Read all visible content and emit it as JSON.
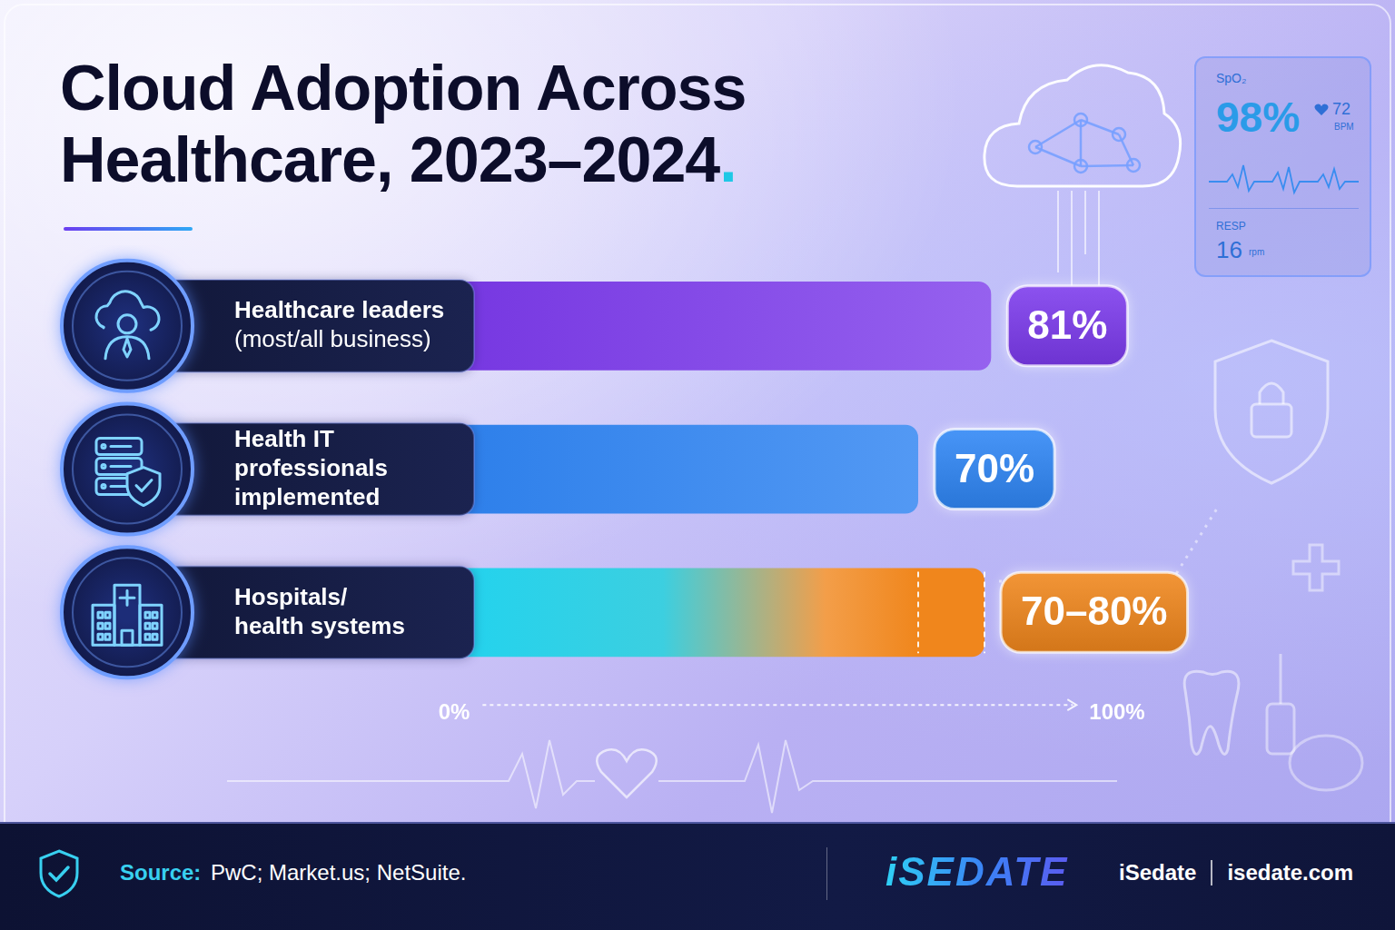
{
  "chart_data": {
    "type": "bar",
    "orientation": "horizontal",
    "title": "Cloud Adoption Across Healthcare, 2023–2024.",
    "categories": [
      "Healthcare leaders\n(most/all business)",
      "Health IT\nprofessionals\nimplemented",
      "Hospitals/\nhealth systems"
    ],
    "values": [
      81,
      70,
      80
    ],
    "range_low": [
      null,
      null,
      70
    ],
    "value_labels": [
      "81%",
      "70%",
      "70–80%"
    ],
    "colors": [
      "#7c3aed",
      "#2f86f6",
      "#f0861c"
    ],
    "xlim": [
      0,
      100
    ],
    "xticks": [
      {
        "value": 0,
        "label": "0%"
      },
      {
        "value": 100,
        "label": "100%"
      }
    ],
    "grid": false,
    "data_labels": true
  },
  "source": {
    "label": "Source:",
    "text": "PwC; Market.us; NetSuite."
  },
  "brand": {
    "logo": "iSEDATE",
    "name": "iSedate",
    "url": "isedate.com"
  },
  "monitor": {
    "spo2_label": "SpO₂",
    "spo2": "98%",
    "heart_rate": "72",
    "heart_rate_unit": "BPM",
    "resp_label": "RESP",
    "resp": "16",
    "resp_unit": "rpm"
  }
}
